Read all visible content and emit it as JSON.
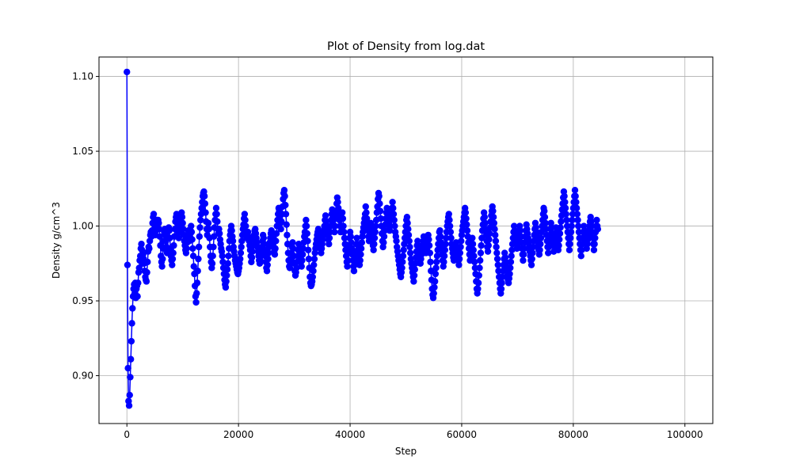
{
  "chart_data": {
    "type": "line",
    "title": "Plot of Density from log.dat",
    "xlabel": "Step",
    "ylabel": "Density g/cm^3",
    "xlim": [
      -5000,
      105000
    ],
    "ylim": [
      0.868,
      1.113
    ],
    "x_ticks": [
      0,
      20000,
      40000,
      60000,
      80000,
      100000
    ],
    "x_tick_labels": [
      "0",
      "20000",
      "40000",
      "60000",
      "80000",
      "100000"
    ],
    "y_ticks": [
      0.9,
      0.95,
      1.0,
      1.05,
      1.1
    ],
    "y_tick_labels": [
      "0.90",
      "0.95",
      "1.00",
      "1.05",
      "1.10"
    ],
    "grid": true,
    "marker": "circle",
    "color": "#0000ff",
    "series": [
      {
        "x_start": 0,
        "x_step": 100,
        "values": [
          1.103,
          0.974,
          0.905,
          0.883,
          0.88,
          0.887,
          0.899,
          0.911,
          0.923,
          0.935,
          0.945,
          0.953,
          0.958,
          0.961,
          0.955,
          0.962,
          0.952,
          0.958,
          0.96,
          0.953,
          0.962,
          0.969,
          0.972,
          0.977,
          0.98,
          0.985,
          0.988,
          0.984,
          0.975,
          0.981,
          0.978,
          0.975,
          0.97,
          0.966,
          0.964,
          0.963,
          0.969,
          0.976,
          0.983,
          0.986,
          0.985,
          0.99,
          0.994,
          0.996,
          0.993,
          0.997,
          1.002,
          1.006,
          1.008,
          1.003,
          0.999,
          0.994,
          0.997,
          1.001,
          1.004,
          1.002,
          1.004,
          1.002,
          0.998,
          0.993,
          0.987,
          0.98,
          0.976,
          0.973,
          0.978,
          0.985,
          0.99,
          0.996,
          0.998,
          0.994,
          0.99,
          0.986,
          0.982,
          0.985,
          0.992,
          0.999,
          0.997,
          0.992,
          0.985,
          0.98,
          0.977,
          0.974,
          0.978,
          0.982,
          0.987,
          0.993,
          0.998,
          1.003,
          1.006,
          1.008,
          1.005,
          1.001,
          0.996,
          0.992,
          0.996,
          1.0,
          1.003,
          1.006,
          1.009,
          1.006,
          1.002,
          0.998,
          0.994,
          0.99,
          0.987,
          0.984,
          0.982,
          0.985,
          0.989,
          0.993,
          0.997,
          0.994,
          0.99,
          0.993,
          0.997,
          1.0,
          0.996,
          0.991,
          0.985,
          0.98,
          0.973,
          0.968,
          0.96,
          0.953,
          0.949,
          0.955,
          0.962,
          0.97,
          0.978,
          0.986,
          0.993,
          0.999,
          1.004,
          1.008,
          1.012,
          1.016,
          1.02,
          1.022,
          1.023,
          1.02,
          1.015,
          1.009,
          1.003,
          0.998,
          0.994,
          0.998,
          1.002,
          0.998,
          0.992,
          0.986,
          0.98,
          0.976,
          0.972,
          0.975,
          0.98,
          0.986,
          0.993,
          0.999,
          1.004,
          1.008,
          1.012,
          1.008,
          1.003,
          0.998,
          0.995,
          0.998,
          0.995,
          0.991,
          0.988,
          0.985,
          0.983,
          0.98,
          0.976,
          0.972,
          0.968,
          0.964,
          0.961,
          0.959,
          0.963,
          0.967,
          0.971,
          0.975,
          0.98,
          0.985,
          0.99,
          0.994,
          0.997,
          1.0,
          0.997,
          0.993,
          0.99,
          0.986,
          0.983,
          0.98,
          0.977,
          0.975,
          0.973,
          0.971,
          0.969,
          0.968,
          0.97,
          0.972,
          0.975,
          0.978,
          0.982,
          0.986,
          0.99,
          0.994,
          0.998,
          1.001,
          1.005,
          1.008,
          1.004,
          1.0,
          0.996,
          0.992,
          0.994,
          0.996,
          0.993,
          0.99,
          0.987,
          0.984,
          0.98,
          0.976,
          0.979,
          0.983,
          0.987,
          0.991,
          0.994,
          0.997,
          0.998,
          0.995,
          0.992,
          0.989,
          0.986,
          0.983,
          0.98,
          0.977,
          0.975,
          0.977,
          0.98,
          0.983,
          0.986,
          0.99,
          0.994,
          0.992,
          0.988,
          0.984,
          0.98,
          0.976,
          0.972,
          0.97,
          0.974,
          0.978,
          0.982,
          0.986,
          0.989,
          0.992,
          0.995,
          0.997,
          0.995,
          0.992,
          0.989,
          0.986,
          0.983,
          0.981,
          0.985,
          0.99,
          0.995,
          1.0,
          1.004,
          1.008,
          1.012,
          1.01,
          1.006,
          1.002,
          0.998,
          1.003,
          1.008,
          1.013,
          1.018,
          1.022,
          1.024,
          1.02,
          1.014,
          1.008,
          1.001,
          0.994,
          0.988,
          0.982,
          0.977,
          0.973,
          0.972,
          0.975,
          0.978,
          0.982,
          0.986,
          0.989,
          0.985,
          0.98,
          0.975,
          0.97,
          0.967,
          0.969,
          0.972,
          0.976,
          0.98,
          0.984,
          0.988,
          0.985,
          0.982,
          0.979,
          0.976,
          0.973,
          0.977,
          0.981,
          0.985,
          0.989,
          0.993,
          0.996,
          1.0,
          1.004,
          1.0,
          0.995,
          0.99,
          0.984,
          0.978,
          0.972,
          0.966,
          0.962,
          0.96,
          0.961,
          0.963,
          0.966,
          0.97,
          0.974,
          0.978,
          0.982,
          0.985,
          0.988,
          0.991,
          0.994,
          0.996,
          0.998,
          0.995,
          0.992,
          0.988,
          0.985,
          0.982,
          0.985,
          0.988,
          0.991,
          0.994,
          0.997,
          1.0,
          1.004,
          1.007,
          1.003,
          1.0,
          0.997,
          0.994,
          0.991,
          0.988,
          0.992,
          0.996,
          1.0,
          1.004,
          1.008,
          1.011,
          1.008,
          1.004,
          1.0,
          0.996,
          1.0,
          1.005,
          1.01,
          1.015,
          1.019,
          1.016,
          1.012,
          1.008,
          1.004,
          1.0,
          0.996,
          1.0,
          1.005,
          1.009,
          1.005,
          1.0,
          0.996,
          0.992,
          0.988,
          0.984,
          0.98,
          0.976,
          0.973,
          0.977,
          0.982,
          0.987,
          0.992,
          0.996,
          0.993,
          0.989,
          0.985,
          0.981,
          0.977,
          0.973,
          0.97,
          0.974,
          0.978,
          0.983,
          0.988,
          0.992,
          0.988,
          0.984,
          0.98,
          0.976,
          0.974,
          0.977,
          0.981,
          0.985,
          0.989,
          0.993,
          0.996,
          0.999,
          1.002,
          1.005,
          1.008,
          1.013,
          1.009,
          1.005,
          1.001,
          0.997,
          0.993,
          0.99,
          0.994,
          0.998,
          1.002,
          0.999,
          0.995,
          0.991,
          0.987,
          0.984,
          0.988,
          0.992,
          0.996,
          1.0,
          1.004,
          1.009,
          1.013,
          1.018,
          1.022,
          1.02,
          1.015,
          1.01,
          1.005,
          1.0,
          0.995,
          0.99,
          0.986,
          0.989,
          0.993,
          0.997,
          1.001,
          1.005,
          1.009,
          1.012,
          1.009,
          1.006,
          1.003,
          1.0,
          0.997,
          1.0,
          1.004,
          1.008,
          1.012,
          1.016,
          1.012,
          1.008,
          1.004,
          1.0,
          0.996,
          0.993,
          0.99,
          0.986,
          0.983,
          0.98,
          0.977,
          0.974,
          0.971,
          0.968,
          0.966,
          0.969,
          0.972,
          0.976,
          0.98,
          0.984,
          0.988,
          0.992,
          0.996,
          1.0,
          1.004,
          1.006,
          1.002,
          0.998,
          0.994,
          0.99,
          0.986,
          0.982,
          0.978,
          0.975,
          0.972,
          0.969,
          0.966,
          0.963,
          0.967,
          0.971,
          0.975,
          0.979,
          0.983,
          0.987,
          0.99,
          0.987,
          0.984,
          0.981,
          0.978,
          0.975,
          0.978,
          0.981,
          0.984,
          0.987,
          0.99,
          0.993,
          0.991,
          0.988,
          0.985,
          0.982,
          0.985,
          0.988,
          0.991,
          0.994,
          0.991,
          0.987,
          0.982,
          0.976,
          0.97,
          0.964,
          0.958,
          0.954,
          0.952,
          0.955,
          0.959,
          0.963,
          0.968,
          0.972,
          0.976,
          0.98,
          0.984,
          0.988,
          0.992,
          0.996,
          0.997,
          0.993,
          0.989,
          0.985,
          0.981,
          0.977,
          0.973,
          0.976,
          0.98,
          0.984,
          0.988,
          0.992,
          0.996,
          1.0,
          1.003,
          1.006,
          1.008,
          1.004,
          1.0,
          0.996,
          0.992,
          0.988,
          0.985,
          0.982,
          0.979,
          0.977,
          0.98,
          0.983,
          0.986,
          0.989,
          0.986,
          0.983,
          0.98,
          0.977,
          0.974,
          0.978,
          0.982,
          0.986,
          0.99,
          0.994,
          0.997,
          1.0,
          1.003,
          1.006,
          1.009,
          1.012,
          1.009,
          1.005,
          1.001,
          0.997,
          0.993,
          0.989,
          0.985,
          0.981,
          0.977,
          0.98,
          0.984,
          0.988,
          0.992,
          0.988,
          0.984,
          0.98,
          0.976,
          0.972,
          0.968,
          0.963,
          0.958,
          0.955,
          0.958,
          0.962,
          0.967,
          0.972,
          0.977,
          0.982,
          0.987,
          0.992,
          0.997,
          1.001,
          1.005,
          1.009,
          1.006,
          1.002,
          0.998,
          0.994,
          0.99,
          0.986,
          0.983,
          0.987,
          0.991,
          0.995,
          0.999,
          1.003,
          1.007,
          1.01,
          1.013,
          1.01,
          1.006,
          1.002,
          0.998,
          0.994,
          0.99,
          0.986,
          0.982,
          0.978,
          0.974,
          0.97,
          0.966,
          0.962,
          0.958,
          0.955,
          0.958,
          0.962,
          0.966,
          0.97,
          0.974,
          0.978,
          0.982,
          0.979,
          0.976,
          0.973,
          0.97,
          0.967,
          0.964,
          0.962,
          0.965,
          0.968,
          0.972,
          0.976,
          0.98,
          0.984,
          0.988,
          0.992,
          0.996,
          1.0,
          0.997,
          0.994,
          0.991,
          0.988,
          0.985,
          0.988,
          0.991,
          0.994,
          0.997,
          1.0,
          0.997,
          0.993,
          0.989,
          0.985,
          0.981,
          0.977,
          0.981,
          0.985,
          0.989,
          0.993,
          0.997,
          1.001,
          0.998,
          0.995,
          0.992,
          0.989,
          0.986,
          0.983,
          0.98,
          0.977,
          0.974,
          0.978,
          0.982,
          0.986,
          0.99,
          0.994,
          0.998,
          1.002,
          0.999,
          0.996,
          0.993,
          0.99,
          0.987,
          0.984,
          0.981,
          0.984,
          0.988,
          0.992,
          0.996,
          1.0,
          1.004,
          1.008,
          1.012,
          1.01,
          1.006,
          1.002,
          0.998,
          0.994,
          0.99,
          0.986,
          0.982,
          0.986,
          0.99,
          0.994,
          0.998,
          1.002,
          0.999,
          0.995,
          0.991,
          0.987,
          0.983,
          0.987,
          0.991,
          0.995,
          0.999,
          0.996,
          0.992,
          0.988,
          0.984,
          0.987,
          0.991,
          0.995,
          0.999,
          1.003,
          1.007,
          1.011,
          1.015,
          1.019,
          1.023,
          1.02,
          1.016,
          1.012,
          1.008,
          1.004,
          1.0,
          0.996,
          0.992,
          0.988,
          0.984,
          0.988,
          0.992,
          0.996,
          1.0,
          1.004,
          1.008,
          1.012,
          1.016,
          1.02,
          1.024,
          1.02,
          1.016,
          1.012,
          1.008,
          1.004,
          1.0,
          0.996,
          0.992,
          0.988,
          0.984,
          0.98,
          0.984,
          0.988,
          0.992,
          0.996,
          1.0,
          0.997,
          0.994,
          0.991,
          0.988,
          0.985,
          0.988,
          0.991,
          0.994,
          0.997,
          1.0,
          1.003,
          1.006,
          1.003,
          1.0,
          0.996,
          0.992,
          0.988,
          0.984,
          0.988,
          0.992,
          0.996,
          1.0,
          1.004,
          1.0,
          0.998
        ]
      }
    ]
  }
}
